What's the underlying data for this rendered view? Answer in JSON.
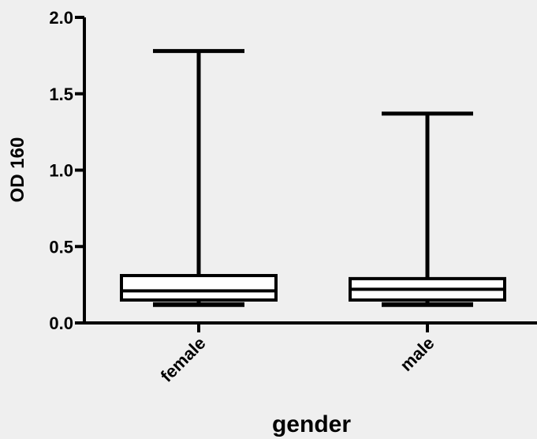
{
  "chart_data": {
    "type": "box",
    "title": "",
    "xlabel": "gender",
    "ylabel": "OD 160",
    "ylim": [
      0,
      2.0
    ],
    "yticks": [
      "0.0",
      "0.5",
      "1.0",
      "1.5",
      "2.0"
    ],
    "ytick_values": [
      0,
      0.5,
      1.0,
      1.5,
      2.0
    ],
    "grid": false,
    "categories": [
      "female",
      "male"
    ],
    "boxes": [
      {
        "category": "female",
        "min": 0.12,
        "q1": 0.15,
        "median": 0.21,
        "q3": 0.31,
        "max": 1.78
      },
      {
        "category": "male",
        "min": 0.12,
        "q1": 0.15,
        "median": 0.22,
        "q3": 0.29,
        "max": 1.37
      }
    ],
    "colors": {
      "background": "#efefef",
      "ink": "#000000",
      "box_fill": "#ffffff"
    }
  }
}
